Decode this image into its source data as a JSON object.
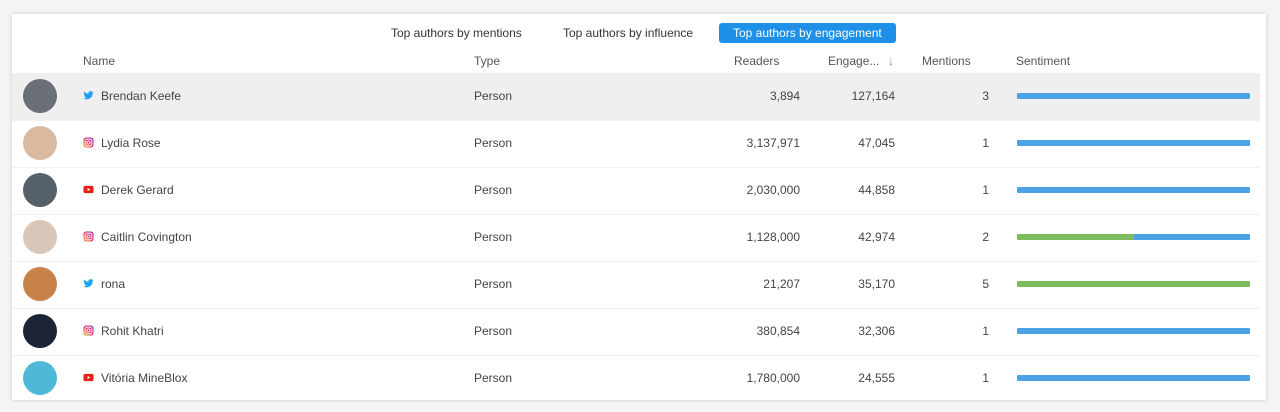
{
  "tabs": [
    {
      "label": "Top authors by mentions",
      "active": false
    },
    {
      "label": "Top authors by influence",
      "active": false
    },
    {
      "label": "Top authors by engagement",
      "active": true
    }
  ],
  "columns": {
    "name": "Name",
    "type": "Type",
    "readers": "Readers",
    "engagement": "Engage...",
    "engagement_sort": "↓",
    "mentions": "Mentions",
    "sentiment": "Sentiment"
  },
  "colors": {
    "accent": "#1e90e8",
    "sentiment_positive": "#7dbb5f",
    "sentiment_neutral": "#4aa3e6",
    "twitter": "#1da1f2",
    "youtube": "#e62117"
  },
  "rows": [
    {
      "name": "Brendan Keefe",
      "source": "twitter-icon",
      "type": "Person",
      "readers": "3,894",
      "engagement": "127,164",
      "mentions": "3",
      "sentiment": {
        "positive": 0,
        "neutral": 1
      },
      "selected": true,
      "avatar": "#6a6f78"
    },
    {
      "name": "Lydia Rose",
      "source": "instagram-icon",
      "type": "Person",
      "readers": "3,137,971",
      "engagement": "47,045",
      "mentions": "1",
      "sentiment": {
        "positive": 0,
        "neutral": 1
      },
      "avatar": "#d9b9a0"
    },
    {
      "name": "Derek Gerard",
      "source": "youtube-icon",
      "type": "Person",
      "readers": "2,030,000",
      "engagement": "44,858",
      "mentions": "1",
      "sentiment": {
        "positive": 0,
        "neutral": 1
      },
      "avatar": "#55606a"
    },
    {
      "name": "Caitlin Covington",
      "source": "instagram-icon",
      "type": "Person",
      "readers": "1,128,000",
      "engagement": "42,974",
      "mentions": "2",
      "sentiment": {
        "positive": 0.5,
        "neutral": 0.5
      },
      "avatar": "#d8c6b8"
    },
    {
      "name": "rona",
      "source": "twitter-icon",
      "type": "Person",
      "readers": "21,207",
      "engagement": "35,170",
      "mentions": "5",
      "sentiment": {
        "positive": 1,
        "neutral": 0
      },
      "avatar": "#c9814a"
    },
    {
      "name": "Rohit Khatri",
      "source": "instagram-icon",
      "type": "Person",
      "readers": "380,854",
      "engagement": "32,306",
      "mentions": "1",
      "sentiment": {
        "positive": 0,
        "neutral": 1
      },
      "avatar": "#1c2436"
    },
    {
      "name": "Vitória MineBlox",
      "source": "youtube-icon",
      "type": "Person",
      "readers": "1,780,000",
      "engagement": "24,555",
      "mentions": "1",
      "sentiment": {
        "positive": 0,
        "neutral": 1
      },
      "avatar": "#4fb8d8"
    }
  ]
}
